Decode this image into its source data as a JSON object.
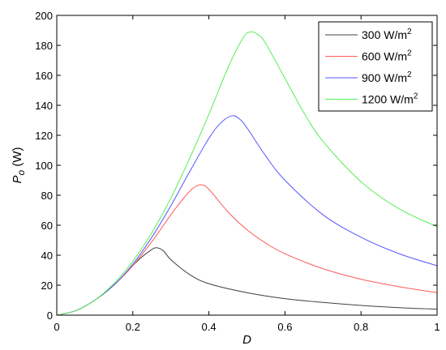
{
  "chart_data": {
    "type": "line",
    "xlabel": "D",
    "ylabel": {
      "main": "P",
      "sub": "o",
      "unit": " (W)"
    },
    "xlim": [
      0,
      1
    ],
    "ylim": [
      0,
      200
    ],
    "xticks": [
      0,
      0.2,
      0.4,
      0.6,
      0.8,
      1
    ],
    "xtick_labels": [
      "0",
      "0.2",
      "0.4",
      "0.6",
      "0.8",
      "1"
    ],
    "yticks": [
      0,
      20,
      40,
      60,
      80,
      100,
      120,
      140,
      160,
      180,
      200
    ],
    "ytick_labels": [
      "0",
      "20",
      "40",
      "60",
      "80",
      "100",
      "120",
      "140",
      "160",
      "180",
      "200"
    ],
    "grid": false,
    "legend_position": "top-right",
    "series": [
      {
        "name": "300 W/m",
        "name_sup": "2",
        "color": "#404040",
        "x": [
          0,
          0.05,
          0.1,
          0.15,
          0.2,
          0.22,
          0.24,
          0.26,
          0.28,
          0.3,
          0.35,
          0.4,
          0.5,
          0.6,
          0.7,
          0.8,
          0.9,
          1.0
        ],
        "y": [
          0,
          3,
          10,
          20,
          33,
          38,
          42,
          45,
          43,
          37,
          27,
          21,
          15,
          11,
          8.5,
          6.5,
          5,
          4
        ]
      },
      {
        "name": "600 W/m",
        "name_sup": "2",
        "color": "#ff5a5a",
        "x": [
          0,
          0.05,
          0.1,
          0.15,
          0.2,
          0.25,
          0.3,
          0.34,
          0.36,
          0.38,
          0.4,
          0.45,
          0.5,
          0.55,
          0.6,
          0.7,
          0.8,
          0.9,
          1.0
        ],
        "y": [
          0,
          3,
          10,
          20,
          33,
          49,
          67,
          80,
          85,
          87,
          84,
          69,
          57,
          48,
          41,
          31,
          24,
          19,
          15
        ]
      },
      {
        "name": "900 W/m",
        "name_sup": "2",
        "color": "#5555ff",
        "x": [
          0,
          0.05,
          0.1,
          0.15,
          0.2,
          0.25,
          0.3,
          0.35,
          0.4,
          0.43,
          0.46,
          0.48,
          0.5,
          0.55,
          0.6,
          0.7,
          0.8,
          0.9,
          1.0
        ],
        "y": [
          0,
          3,
          10,
          20,
          34,
          52,
          73,
          96,
          118,
          128,
          133,
          131,
          125,
          106,
          90,
          67,
          52,
          41,
          33
        ]
      },
      {
        "name": "1200 W/m",
        "name_sup": "2",
        "color": "#55ee55",
        "x": [
          0,
          0.05,
          0.1,
          0.15,
          0.2,
          0.25,
          0.3,
          0.35,
          0.4,
          0.45,
          0.49,
          0.51,
          0.53,
          0.55,
          0.6,
          0.65,
          0.7,
          0.8,
          0.9,
          1.0
        ],
        "y": [
          0,
          3,
          10,
          21,
          36,
          55,
          78,
          105,
          134,
          165,
          185,
          189,
          187,
          181,
          158,
          135,
          116,
          89,
          71,
          59
        ]
      }
    ]
  }
}
